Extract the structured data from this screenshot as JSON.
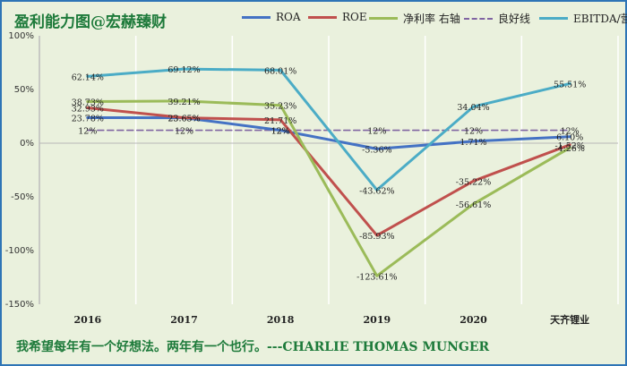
{
  "header": {
    "title": "盈利能力图@宏赫臻财"
  },
  "footer": {
    "quote": "我希望每年有一个好想法。两年有一个也行。---CHARLIE THOMAS MUNGER"
  },
  "chart_data": {
    "type": "line",
    "title": "盈利能力图@宏赫臻财",
    "categories": [
      "2016",
      "2017",
      "2018",
      "2019",
      "2020",
      "天齐锂业"
    ],
    "ylim": [
      -150,
      100
    ],
    "yticks": [
      100,
      50,
      0,
      -50,
      -100,
      -150
    ],
    "ytick_labels": [
      "100%",
      "50%",
      "0%",
      "-50%",
      "-100%",
      "-150%"
    ],
    "grid": "vertical",
    "legend_position": "top",
    "series": [
      {
        "name": "ROA",
        "color": "#4472c4",
        "dashed": false,
        "values": [
          23.78,
          23.65,
          12.0,
          -5.36,
          1.71,
          6.1
        ],
        "labels": [
          "23.78%",
          "23.65%",
          "12%",
          "-5.36%",
          "1.71%",
          "6.10%"
        ]
      },
      {
        "name": "ROE",
        "color": "#c0504d",
        "dashed": false,
        "values": [
          32.93,
          23.65,
          21.71,
          -85.93,
          -35.22,
          -1.52
        ],
        "labels": [
          "32.93%",
          "23.65%",
          "21.71%",
          "-85.93%",
          "-35.22%",
          "-1.52%"
        ]
      },
      {
        "name": "净利率 右轴",
        "color": "#9bbb59",
        "dashed": false,
        "values": [
          38.73,
          39.21,
          35.23,
          -123.61,
          -56.61,
          -4.26
        ],
        "labels": [
          "38.73%",
          "39.21%",
          "35.23%",
          "-123.61%",
          "-56.61%",
          "-4.26%"
        ]
      },
      {
        "name": "良好线",
        "color": "#8064a2",
        "dashed": true,
        "values": [
          12,
          12,
          12,
          12,
          12,
          12
        ],
        "labels": [
          "12%",
          "12%",
          "12%",
          "12%",
          "12%",
          "12%"
        ]
      },
      {
        "name": "EBITDA/营收",
        "color": "#4bacc6",
        "dashed": false,
        "values": [
          62.14,
          69.12,
          68.01,
          -43.62,
          34.04,
          55.51
        ],
        "labels": [
          "62.14%",
          "69.12%",
          "68.01%",
          "-43.62%",
          "34.04%",
          "55.51%"
        ]
      }
    ]
  }
}
